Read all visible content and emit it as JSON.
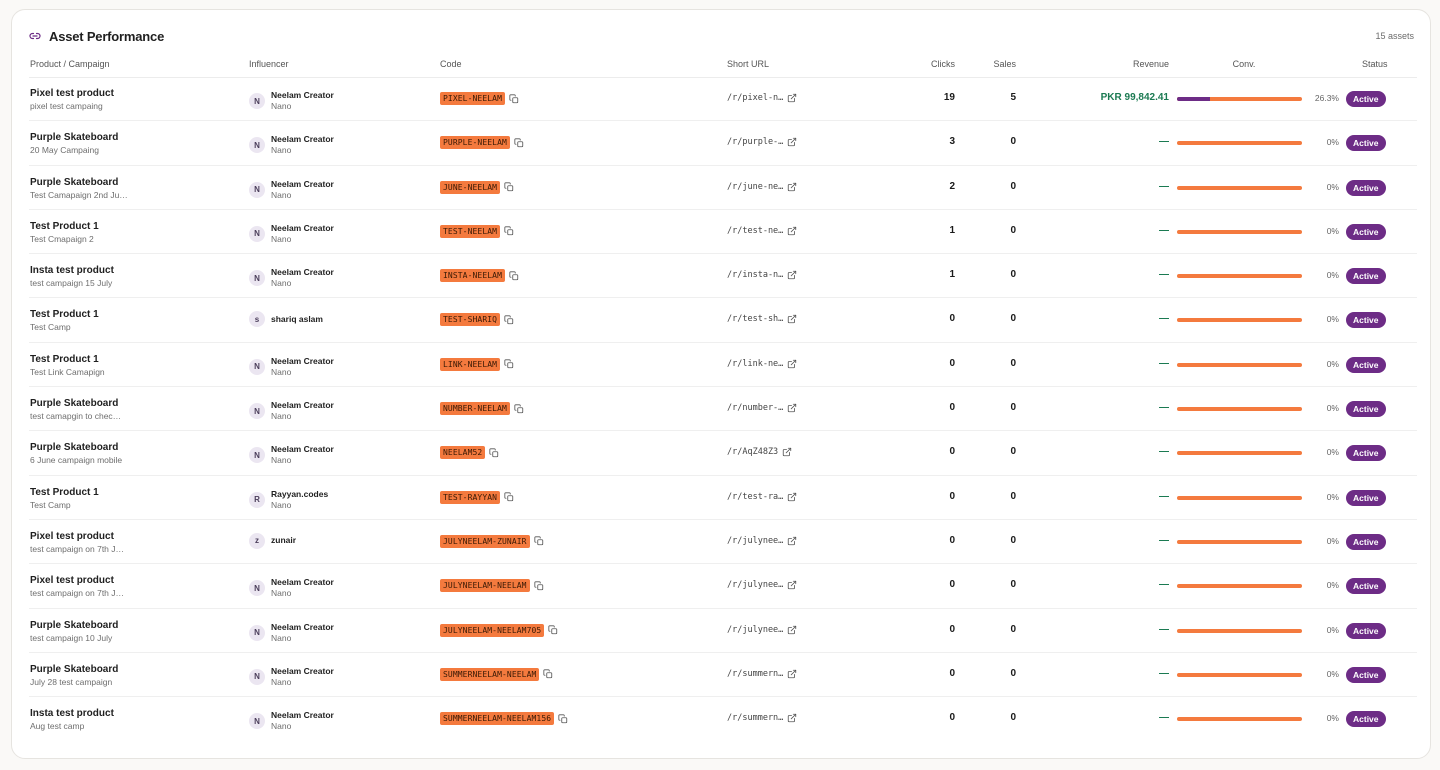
{
  "header": {
    "title": "Asset Performance",
    "count": "15 assets",
    "icon": "link-icon"
  },
  "columns": {
    "product": "Product / Campaign",
    "influencer": "Influencer",
    "code": "Code",
    "short_url": "Short URL",
    "clicks": "Clicks",
    "sales": "Sales",
    "revenue": "Revenue",
    "conv": "Conv.",
    "status": "Status"
  },
  "colors": {
    "accent_purple": "#6d2c86",
    "code_orange": "#f47a3e",
    "revenue_green": "#1b7a52"
  },
  "rows": [
    {
      "product": "Pixel test product",
      "campaign": "pixel test campaing",
      "avatar": "N",
      "influencer": "Neelam Creator",
      "tier": "Nano",
      "code": "PIXEL-NEELAM",
      "short_url": "/r/pixel-n…",
      "clicks": "19",
      "sales": "5",
      "revenue": "PKR 99,842.41",
      "conv": "26.3%",
      "conv_value": 0.263,
      "status": "Active"
    },
    {
      "product": "Purple Skateboard",
      "campaign": "20 May Campaing",
      "avatar": "N",
      "influencer": "Neelam Creator",
      "tier": "Nano",
      "code": "PURPLE-NEELAM",
      "short_url": "/r/purple-…",
      "clicks": "3",
      "sales": "0",
      "revenue": "—",
      "conv": "0%",
      "conv_value": 0,
      "status": "Active"
    },
    {
      "product": "Purple Skateboard",
      "campaign": "Test Camapaign 2nd Ju…",
      "avatar": "N",
      "influencer": "Neelam Creator",
      "tier": "Nano",
      "code": "JUNE-NEELAM",
      "short_url": "/r/june-ne…",
      "clicks": "2",
      "sales": "0",
      "revenue": "—",
      "conv": "0%",
      "conv_value": 0,
      "status": "Active"
    },
    {
      "product": "Test Product 1",
      "campaign": "Test Cmapaign 2",
      "avatar": "N",
      "influencer": "Neelam Creator",
      "tier": "Nano",
      "code": "TEST-NEELAM",
      "short_url": "/r/test-ne…",
      "clicks": "1",
      "sales": "0",
      "revenue": "—",
      "conv": "0%",
      "conv_value": 0,
      "status": "Active"
    },
    {
      "product": "Insta test product",
      "campaign": "test campaign 15 July",
      "avatar": "N",
      "influencer": "Neelam Creator",
      "tier": "Nano",
      "code": "INSTA-NEELAM",
      "short_url": "/r/insta-n…",
      "clicks": "1",
      "sales": "0",
      "revenue": "—",
      "conv": "0%",
      "conv_value": 0,
      "status": "Active"
    },
    {
      "product": "Test Product 1",
      "campaign": "Test Camp",
      "avatar": "s",
      "influencer": "shariq aslam",
      "tier": "",
      "code": "TEST-SHARIQ",
      "short_url": "/r/test-sh…",
      "clicks": "0",
      "sales": "0",
      "revenue": "—",
      "conv": "0%",
      "conv_value": 0,
      "status": "Active"
    },
    {
      "product": "Test Product 1",
      "campaign": "Test Link Camapign",
      "avatar": "N",
      "influencer": "Neelam Creator",
      "tier": "Nano",
      "code": "LINK-NEELAM",
      "short_url": "/r/link-ne…",
      "clicks": "0",
      "sales": "0",
      "revenue": "—",
      "conv": "0%",
      "conv_value": 0,
      "status": "Active"
    },
    {
      "product": "Purple Skateboard",
      "campaign": "test camapgin to chec…",
      "avatar": "N",
      "influencer": "Neelam Creator",
      "tier": "Nano",
      "code": "NUMBER-NEELAM",
      "short_url": "/r/number-…",
      "clicks": "0",
      "sales": "0",
      "revenue": "—",
      "conv": "0%",
      "conv_value": 0,
      "status": "Active"
    },
    {
      "product": "Purple Skateboard",
      "campaign": "6 June campaign mobile",
      "avatar": "N",
      "influencer": "Neelam Creator",
      "tier": "Nano",
      "code": "NEELAM52",
      "short_url": "/r/AqZ48Z3",
      "clicks": "0",
      "sales": "0",
      "revenue": "—",
      "conv": "0%",
      "conv_value": 0,
      "status": "Active"
    },
    {
      "product": "Test Product 1",
      "campaign": "Test Camp",
      "avatar": "R",
      "influencer": "Rayyan.codes",
      "tier": "Nano",
      "code": "TEST-RAYYAN",
      "short_url": "/r/test-ra…",
      "clicks": "0",
      "sales": "0",
      "revenue": "—",
      "conv": "0%",
      "conv_value": 0,
      "status": "Active"
    },
    {
      "product": "Pixel test product",
      "campaign": "test campaign on 7th J…",
      "avatar": "z",
      "influencer": "zunair",
      "tier": "",
      "code": "JULYNEELAM-ZUNAIR",
      "short_url": "/r/julynee…",
      "clicks": "0",
      "sales": "0",
      "revenue": "—",
      "conv": "0%",
      "conv_value": 0,
      "status": "Active"
    },
    {
      "product": "Pixel test product",
      "campaign": "test campaign on 7th J…",
      "avatar": "N",
      "influencer": "Neelam Creator",
      "tier": "Nano",
      "code": "JULYNEELAM-NEELAM",
      "short_url": "/r/julynee…",
      "clicks": "0",
      "sales": "0",
      "revenue": "—",
      "conv": "0%",
      "conv_value": 0,
      "status": "Active"
    },
    {
      "product": "Purple Skateboard",
      "campaign": "test campaign 10 July",
      "avatar": "N",
      "influencer": "Neelam Creator",
      "tier": "Nano",
      "code": "JULYNEELAM-NEELAM705",
      "short_url": "/r/julynee…",
      "clicks": "0",
      "sales": "0",
      "revenue": "—",
      "conv": "0%",
      "conv_value": 0,
      "status": "Active"
    },
    {
      "product": "Purple Skateboard",
      "campaign": "July 28 test campaign",
      "avatar": "N",
      "influencer": "Neelam Creator",
      "tier": "Nano",
      "code": "SUMMERNEELAM-NEELAM",
      "short_url": "/r/summern…",
      "clicks": "0",
      "sales": "0",
      "revenue": "—",
      "conv": "0%",
      "conv_value": 0,
      "status": "Active"
    },
    {
      "product": "Insta test product",
      "campaign": "Aug test camp",
      "avatar": "N",
      "influencer": "Neelam Creator",
      "tier": "Nano",
      "code": "SUMMERNEELAM-NEELAM156",
      "short_url": "/r/summern…",
      "clicks": "0",
      "sales": "0",
      "revenue": "—",
      "conv": "0%",
      "conv_value": 0,
      "status": "Active"
    }
  ]
}
